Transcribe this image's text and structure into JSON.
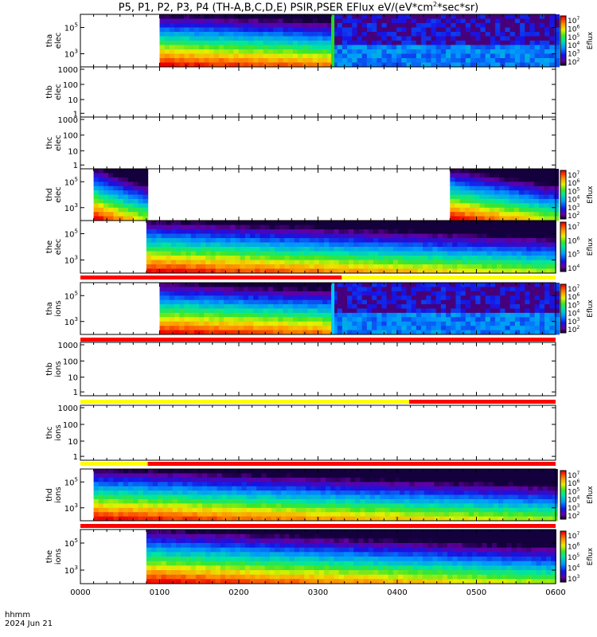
{
  "title_main": "P5, P1, P2, P3, P4 (TH-A,B,C,D,E) PSIR,PSER EFlux eV/(eV*cm",
  "title_sup": "2",
  "title_tail": "*sec*sr)",
  "colorbar_label": "Eflux",
  "footer": {
    "line1": "hhmm",
    "line2": "2024 Jun 21"
  },
  "x_ticks": [
    "0000",
    "0100",
    "0200",
    "0300",
    "0400",
    "0500",
    "0600"
  ],
  "colors": {
    "red": "#ff0000",
    "yellow": "#ffff00",
    "purple": "#6a00a8"
  },
  "chart_data": [
    {
      "type": "heatmap",
      "probe": "tha",
      "species": "elec",
      "ylabel": "tha elec",
      "y_ticks": [
        "10^5",
        "10^3"
      ],
      "data_start_hhmm": "0100",
      "transition_hhmm": "0310",
      "colorbar_ticks": [
        "10^7",
        "10^6",
        "10^5",
        "10^4",
        "10^3",
        "10^2"
      ]
    },
    {
      "type": "heatmap",
      "probe": "thb",
      "species": "elec",
      "ylabel": "thb elec",
      "y_ticks": [
        "1000",
        "100",
        "10",
        "1"
      ],
      "empty": true
    },
    {
      "type": "heatmap",
      "probe": "thc",
      "species": "elec",
      "ylabel": "thc elec",
      "y_ticks": [
        "1000",
        "100",
        "10",
        "1"
      ],
      "empty": true
    },
    {
      "type": "heatmap",
      "probe": "thd",
      "species": "elec",
      "ylabel": "thd elec",
      "y_ticks": [
        "10^5",
        "10^3"
      ],
      "data_segments_hhmm": [
        [
          "0010",
          "0050"
        ],
        [
          "0440",
          "0600"
        ]
      ],
      "colorbar_ticks": [
        "10^7",
        "10^6",
        "10^5",
        "10^4",
        "10^3",
        "10^2"
      ]
    },
    {
      "type": "heatmap",
      "probe": "the",
      "species": "elec",
      "ylabel": "the elec",
      "y_ticks": [
        "10^5",
        "10^3"
      ],
      "data_start_hhmm": "0050",
      "colorbar_ticks": [
        "10^7",
        "10^6",
        "10^5",
        "10^4"
      ]
    },
    {
      "type": "heatmap",
      "probe": "tha",
      "species": "ions",
      "ylabel": "tha ions",
      "y_ticks": [
        "10^5",
        "10^3"
      ],
      "data_start_hhmm": "0100",
      "transition_hhmm": "0310",
      "colorbar_ticks": [
        "10^7",
        "10^6",
        "10^5",
        "10^4",
        "10^3",
        "10^2"
      ]
    },
    {
      "type": "heatmap",
      "probe": "thb",
      "species": "ions",
      "ylabel": "thb ions",
      "y_ticks": [
        "1000",
        "100",
        "10",
        "1"
      ],
      "empty": true
    },
    {
      "type": "heatmap",
      "probe": "thc",
      "species": "ions",
      "ylabel": "thc ions",
      "y_ticks": [
        "1000",
        "100",
        "10",
        "1"
      ],
      "empty": true
    },
    {
      "type": "heatmap",
      "probe": "thd",
      "species": "ions",
      "ylabel": "thd ions",
      "y_ticks": [
        "10^5",
        "10^3"
      ],
      "data_start_hhmm": "0010",
      "colorbar_ticks": [
        "10^7",
        "10^6",
        "10^5",
        "10^4",
        "10^3",
        "10^2"
      ]
    },
    {
      "type": "heatmap",
      "probe": "the",
      "species": "ions",
      "ylabel": "the ions",
      "y_ticks": [
        "10^5",
        "10^3"
      ],
      "data_start_hhmm": "0050",
      "colorbar_ticks": [
        "10^7",
        "10^6",
        "10^5",
        "10^4",
        "10^3"
      ]
    }
  ]
}
